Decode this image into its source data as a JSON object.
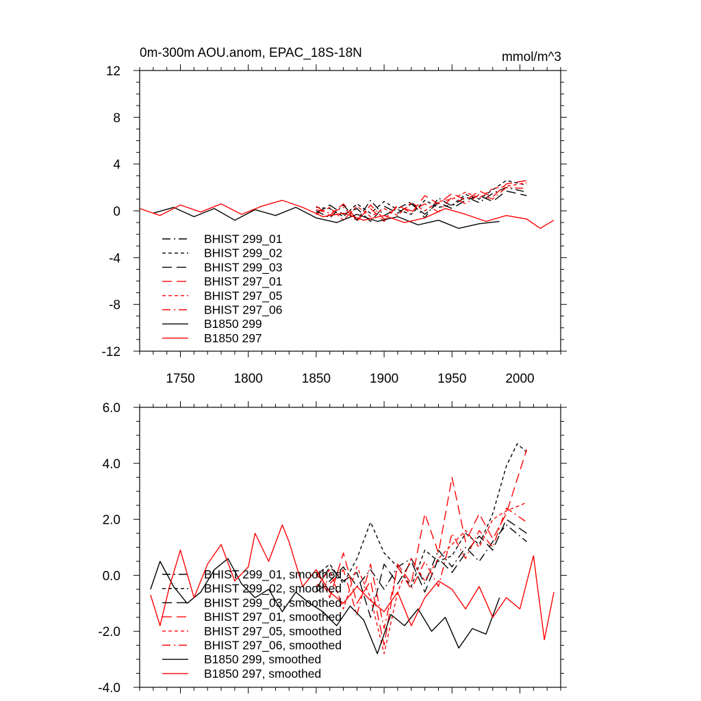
{
  "chart_data": [
    {
      "type": "line",
      "title": "0m-300m AOU.anom, EPAC_18S-18N",
      "units": "mmol/m^3",
      "xlim": [
        1720,
        2030
      ],
      "ylim": [
        -12,
        12
      ],
      "xticks": [
        1750,
        1800,
        1850,
        1900,
        1950,
        2000
      ],
      "xtick_labels": [
        "1750",
        "1800",
        "1850",
        "1900",
        "1950",
        "2000"
      ],
      "yticks": [
        -12,
        -8,
        -4,
        0,
        4,
        8,
        12
      ],
      "ytick_labels": [
        "-12",
        "-8",
        "-4",
        "0",
        "4",
        "8",
        "12"
      ],
      "legend_position": "lower-left",
      "series": [
        {
          "name": "BHIST 299_01",
          "color": "#000000",
          "dash": "dash-dot",
          "x": [
            1850,
            1860,
            1870,
            1880,
            1890,
            1900,
            1910,
            1920,
            1930,
            1940,
            1950,
            1960,
            1970,
            1980,
            1990,
            2005
          ],
          "y": [
            0.0,
            -0.6,
            0.5,
            -0.8,
            0.9,
            -0.4,
            0.2,
            0.8,
            -0.6,
            1.1,
            0.4,
            1.2,
            0.7,
            1.5,
            2.0,
            1.6
          ]
        },
        {
          "name": "BHIST 299_02",
          "color": "#000000",
          "dash": "short-dash",
          "x": [
            1850,
            1860,
            1870,
            1880,
            1890,
            1900,
            1910,
            1920,
            1930,
            1940,
            1950,
            1960,
            1970,
            1980,
            1990,
            2005
          ],
          "y": [
            0.3,
            0.2,
            -0.5,
            0.6,
            -0.2,
            0.8,
            0.1,
            -0.3,
            0.9,
            0.3,
            0.5,
            1.4,
            1.0,
            1.8,
            2.6,
            2.2
          ]
        },
        {
          "name": "BHIST 299_03",
          "color": "#000000",
          "dash": "long-dash",
          "x": [
            1850,
            1860,
            1870,
            1880,
            1890,
            1900,
            1910,
            1920,
            1930,
            1940,
            1950,
            1960,
            1970,
            1980,
            1990,
            2005
          ],
          "y": [
            -0.2,
            0.5,
            -0.3,
            0.2,
            -0.9,
            0.4,
            -0.2,
            0.6,
            -0.3,
            0.7,
            0.2,
            0.9,
            1.3,
            0.8,
            1.7,
            1.3
          ]
        },
        {
          "name": "BHIST 297_01",
          "color": "#ff0000",
          "dash": "long-dash",
          "x": [
            1850,
            1860,
            1870,
            1880,
            1890,
            1900,
            1910,
            1920,
            1930,
            1940,
            1950,
            1960,
            1970,
            1980,
            1990,
            2005
          ],
          "y": [
            0.4,
            -0.4,
            0.6,
            -0.7,
            0.2,
            -0.9,
            0.5,
            -0.2,
            1.3,
            0.6,
            1.5,
            0.9,
            1.7,
            1.2,
            2.3,
            2.6
          ]
        },
        {
          "name": "BHIST 297_05",
          "color": "#ff0000",
          "dash": "short-dash",
          "x": [
            1850,
            1860,
            1870,
            1880,
            1890,
            1900,
            1910,
            1920,
            1930,
            1940,
            1950,
            1960,
            1970,
            1980,
            1990,
            2005
          ],
          "y": [
            -0.3,
            0.3,
            -0.8,
            0.4,
            -0.5,
            0.2,
            -0.4,
            0.7,
            0.0,
            0.8,
            1.0,
            1.6,
            1.1,
            1.9,
            2.1,
            2.4
          ]
        },
        {
          "name": "BHIST 297_06",
          "color": "#ff0000",
          "dash": "dash-dot",
          "x": [
            1850,
            1860,
            1870,
            1880,
            1890,
            1900,
            1910,
            1920,
            1930,
            1940,
            1950,
            1960,
            1970,
            1980,
            1990,
            2005
          ],
          "y": [
            0.1,
            -0.2,
            0.3,
            -0.9,
            0.5,
            -0.7,
            0.4,
            0.0,
            0.6,
            -0.1,
            1.2,
            0.6,
            1.4,
            1.0,
            2.0,
            1.9
          ]
        },
        {
          "name": "B1850 299",
          "color": "#000000",
          "dash": "solid",
          "x": [
            1730,
            1745,
            1760,
            1775,
            1790,
            1805,
            1820,
            1835,
            1850,
            1865,
            1880,
            1895,
            1910,
            1925,
            1940,
            1955,
            1970,
            1985
          ],
          "y": [
            -0.2,
            0.3,
            -0.5,
            0.2,
            -0.8,
            0.1,
            -0.4,
            0.3,
            -0.6,
            -1.0,
            -0.3,
            -0.9,
            -0.5,
            -1.2,
            -0.8,
            -1.5,
            -1.1,
            -0.9
          ]
        },
        {
          "name": "B1850 297",
          "color": "#ff0000",
          "dash": "solid",
          "x": [
            1720,
            1735,
            1750,
            1765,
            1780,
            1795,
            1810,
            1825,
            1840,
            1855,
            1870,
            1885,
            1900,
            1915,
            1930,
            1945,
            1960,
            1975,
            1990,
            2005,
            2015,
            2025
          ],
          "y": [
            0.2,
            -0.4,
            0.5,
            -0.1,
            0.6,
            -0.3,
            0.4,
            0.9,
            0.3,
            -0.5,
            -0.2,
            -0.8,
            -0.4,
            -1.0,
            -0.6,
            0.2,
            -0.3,
            -0.9,
            -0.4,
            -0.7,
            -1.5,
            -0.8
          ]
        }
      ]
    },
    {
      "type": "line",
      "title": "",
      "xlim": [
        1720,
        2030
      ],
      "ylim": [
        -4,
        6
      ],
      "xticks": [
        1750,
        1800,
        1850,
        1900,
        1950,
        2000
      ],
      "yticks": [
        -4,
        -2,
        0,
        2,
        4,
        6
      ],
      "ytick_labels": [
        "-4.0",
        "-2.0",
        "0.0",
        "2.0",
        "4.0",
        "6.0"
      ],
      "legend_position": "lower-left",
      "series": [
        {
          "name": "BHIST 299_01, smoothed",
          "color": "#000000",
          "dash": "dash-dot",
          "x": [
            1850,
            1860,
            1870,
            1880,
            1890,
            1900,
            1910,
            1920,
            1930,
            1940,
            1950,
            1960,
            1970,
            1980,
            1990,
            2005
          ],
          "y": [
            -0.6,
            -0.2,
            0.3,
            -0.4,
            0.2,
            -0.5,
            0.3,
            0.6,
            -0.3,
            0.9,
            0.3,
            1.0,
            0.5,
            1.2,
            1.8,
            1.2
          ]
        },
        {
          "name": "BHIST 299_02, smoothed",
          "color": "#000000",
          "dash": "short-dash",
          "x": [
            1850,
            1860,
            1870,
            1880,
            1890,
            1900,
            1910,
            1920,
            1930,
            1940,
            1950,
            1960,
            1970,
            1980,
            1990,
            1998,
            2005
          ],
          "y": [
            0.0,
            0.4,
            -0.3,
            0.6,
            1.9,
            0.8,
            0.3,
            -0.4,
            0.9,
            0.5,
            0.7,
            1.5,
            1.1,
            2.2,
            3.9,
            4.7,
            4.4
          ]
        },
        {
          "name": "BHIST 299_03, smoothed",
          "color": "#000000",
          "dash": "long-dash",
          "x": [
            1850,
            1860,
            1870,
            1880,
            1890,
            1900,
            1910,
            1920,
            1930,
            1940,
            1950,
            1960,
            1970,
            1980,
            1990,
            2005
          ],
          "y": [
            -0.5,
            0.3,
            -0.2,
            0.1,
            -1.5,
            0.4,
            -0.3,
            0.5,
            -0.6,
            0.6,
            0.1,
            0.8,
            1.4,
            0.9,
            2.0,
            1.5
          ]
        },
        {
          "name": "BHIST 297_01, smoothed",
          "color": "#ff0000",
          "dash": "long-dash",
          "x": [
            1850,
            1860,
            1870,
            1880,
            1890,
            1900,
            1910,
            1920,
            1930,
            1940,
            1950,
            1960,
            1970,
            1980,
            1990,
            2005
          ],
          "y": [
            0.2,
            -0.8,
            0.8,
            -1.0,
            -0.2,
            -2.5,
            0.4,
            -0.3,
            2.2,
            0.8,
            3.5,
            1.2,
            2.2,
            1.3,
            2.2,
            4.5
          ]
        },
        {
          "name": "BHIST 297_05, smoothed",
          "color": "#ff0000",
          "dash": "short-dash",
          "x": [
            1850,
            1860,
            1870,
            1880,
            1890,
            1900,
            1910,
            1920,
            1930,
            1940,
            1950,
            1960,
            1970,
            1980,
            1990,
            2005
          ],
          "y": [
            -0.4,
            0.2,
            -1.2,
            0.3,
            -0.8,
            -2.8,
            -0.6,
            0.6,
            -0.2,
            0.6,
            1.1,
            1.6,
            1.0,
            2.0,
            2.3,
            2.6
          ]
        },
        {
          "name": "BHIST 297_06, smoothed",
          "color": "#ff0000",
          "dash": "dash-dot",
          "x": [
            1850,
            1860,
            1870,
            1880,
            1890,
            1900,
            1910,
            1920,
            1930,
            1940,
            1950,
            1960,
            1970,
            1980,
            1990,
            2005
          ],
          "y": [
            0.0,
            -0.3,
            0.2,
            -1.4,
            0.4,
            -1.9,
            0.3,
            -0.5,
            0.5,
            -0.4,
            1.5,
            0.6,
            1.6,
            1.0,
            2.4,
            1.9
          ]
        },
        {
          "name": "B1850 299, smoothed",
          "color": "#000000",
          "dash": "solid",
          "x": [
            1728,
            1735,
            1745,
            1755,
            1765,
            1775,
            1785,
            1795,
            1805,
            1815,
            1825,
            1835,
            1845,
            1855,
            1865,
            1875,
            1885,
            1895,
            1905,
            1915,
            1925,
            1935,
            1945,
            1955,
            1965,
            1975,
            1985
          ],
          "y": [
            -0.5,
            0.5,
            -0.4,
            -1.0,
            -0.6,
            0.2,
            0.6,
            -0.3,
            -0.8,
            -0.5,
            -1.3,
            -0.6,
            -1.0,
            -1.3,
            -1.8,
            -1.1,
            -1.6,
            -2.8,
            -1.4,
            -1.8,
            -1.2,
            -2.0,
            -1.5,
            -2.6,
            -1.9,
            -2.1,
            -0.8
          ]
        },
        {
          "name": "B1850 297, smoothed",
          "color": "#ff0000",
          "dash": "solid",
          "x": [
            1728,
            1735,
            1742,
            1750,
            1760,
            1770,
            1780,
            1790,
            1800,
            1805,
            1815,
            1825,
            1830,
            1840,
            1850,
            1860,
            1870,
            1880,
            1890,
            1900,
            1910,
            1920,
            1930,
            1940,
            1950,
            1960,
            1970,
            1980,
            1990,
            2000,
            2010,
            2018,
            2025
          ],
          "y": [
            -0.7,
            -1.8,
            -0.4,
            0.9,
            -0.8,
            0.4,
            1.1,
            -0.2,
            0.3,
            1.5,
            0.5,
            1.8,
            1.2,
            -0.4,
            0.2,
            -0.6,
            -1.0,
            -0.4,
            -0.9,
            -1.3,
            -0.6,
            -1.8,
            -0.8,
            -0.2,
            -0.5,
            -1.2,
            -0.4,
            -1.5,
            -0.8,
            -1.2,
            0.7,
            -2.3,
            -0.6
          ]
        }
      ]
    }
  ]
}
